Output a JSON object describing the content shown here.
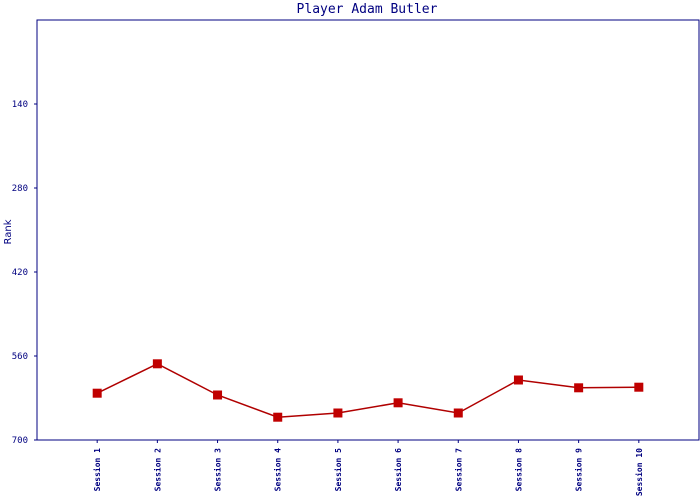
{
  "chart_data": {
    "type": "line",
    "title": "Player Adam Butler",
    "y_label": "Rank",
    "categories": [
      "Session 1",
      "Session 2",
      "Session 3",
      "Session 4",
      "Session 5",
      "Session 6",
      "Session 7",
      "Session 8",
      "Session 9",
      "Session 10"
    ],
    "values": [
      622,
      573,
      625,
      662,
      655,
      638,
      655,
      600,
      613,
      612
    ],
    "color": "#b00000",
    "marker_color": "#c00000",
    "ylim": [
      0,
      700
    ],
    "y_inverted": true,
    "yticks": [
      140,
      280,
      420,
      560,
      700
    ],
    "grid": false
  }
}
